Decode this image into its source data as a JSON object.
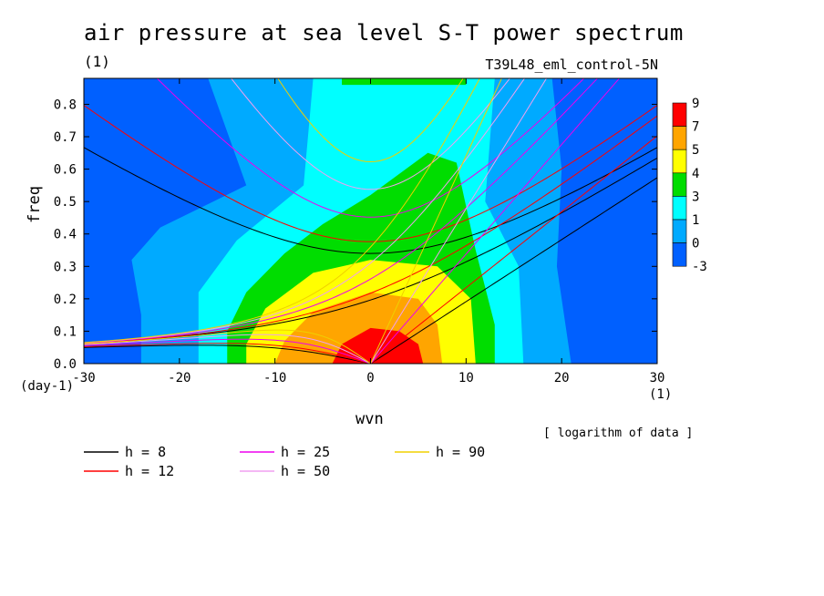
{
  "title": "air pressure at sea level S-T power spectrum",
  "subtitle_left": "(1)",
  "subtitle_right": "T39L48_eml_control-5N",
  "note": "[ logarithm of data ]",
  "chart_data": {
    "type": "heatmap",
    "title": "air pressure at sea level S-T power spectrum",
    "xlabel": "wvn",
    "ylabel": "freq",
    "x_unit": "(1)",
    "y_unit": "(day-1)",
    "xlim": [
      -30,
      30
    ],
    "ylim": [
      0,
      0.88
    ],
    "x_ticks": [
      -30,
      -20,
      -10,
      0,
      10,
      20,
      30
    ],
    "y_ticks": [
      0.0,
      0.1,
      0.2,
      0.3,
      0.4,
      0.5,
      0.6,
      0.7,
      0.8
    ],
    "colorbar": {
      "levels": [
        "9",
        "7",
        "5",
        "4",
        "3",
        "1",
        "0",
        "-3"
      ],
      "colors": [
        "#ff0000",
        "#ffa500",
        "#ffff00",
        "#00dd00",
        "#00ffff",
        "#00aaff",
        "#0060ff"
      ]
    },
    "contour_fill_order": [
      "#0060ff",
      "#00aaff",
      "#00ffff",
      "#00dd00",
      "#ffff00",
      "#ffa500",
      "#ff0000"
    ],
    "dispersion_curves": [
      {
        "label": "h =  8",
        "h": 8,
        "color": "#000000"
      },
      {
        "label": "h = 12",
        "h": 12,
        "color": "#ff0000"
      },
      {
        "label": "h = 25",
        "h": 25,
        "color": "#ee00ee"
      },
      {
        "label": "h = 50",
        "h": 50,
        "color": "#f0a0f0"
      },
      {
        "label": "h = 90",
        "h": 90,
        "color": "#f0d000"
      }
    ]
  }
}
